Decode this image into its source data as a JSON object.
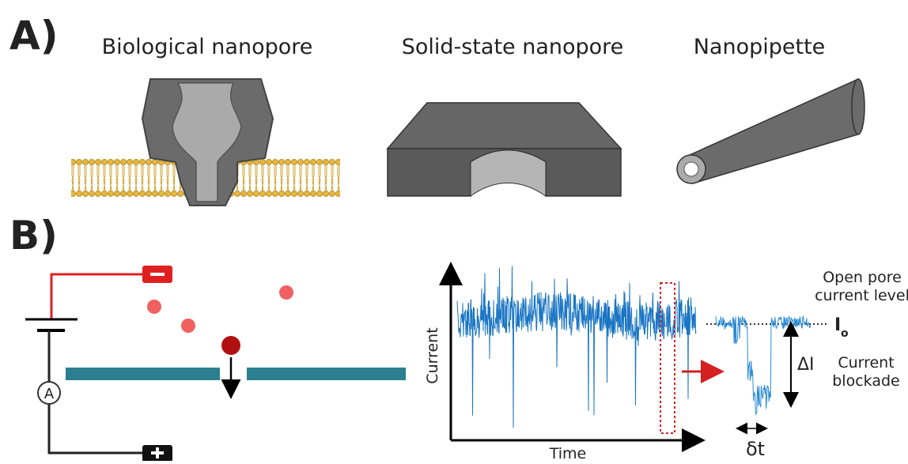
{
  "panel_a": {
    "label": "A)",
    "items": [
      "Biological nanopore",
      "Solid-state nanopore",
      "Nanopipette"
    ]
  },
  "panel_b": {
    "label": "B)",
    "ammeter": "A",
    "y_axis": "Current",
    "x_axis": "Time",
    "open_pore": [
      "Open pore",
      "current level"
    ],
    "baseline_symbol": "I",
    "baseline_subscript": "o",
    "delta_i": "ΔI",
    "blockade": [
      "Current",
      "blockade"
    ],
    "delta_t": "δt"
  }
}
